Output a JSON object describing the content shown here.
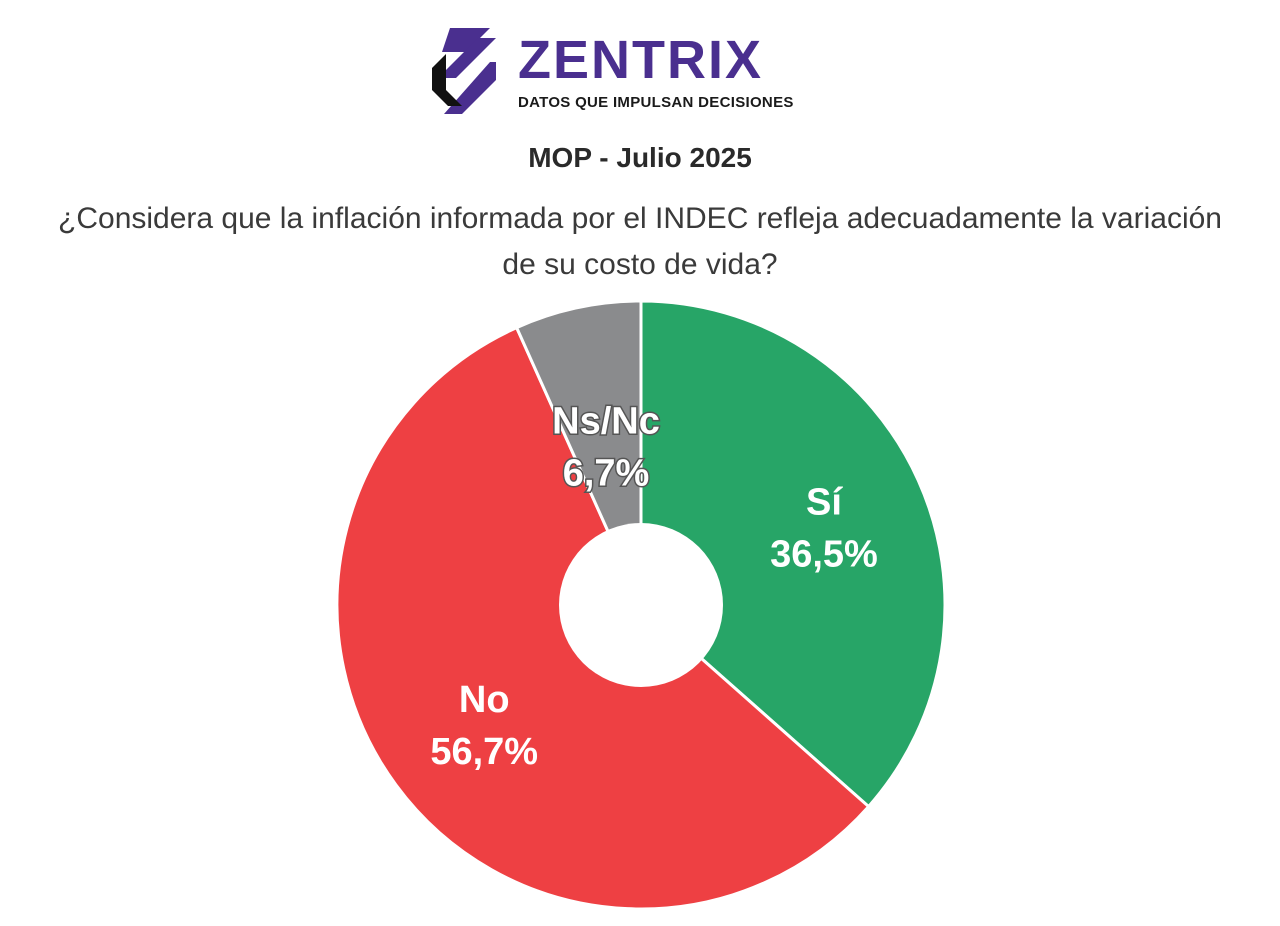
{
  "brand": {
    "name": "ZENTRIX",
    "tagline": "DATOS QUE IMPULSAN DECISIONES",
    "logo_icon": "zentrix-logo-icon",
    "color": "#4a2f8f"
  },
  "title": "MOP - Julio 2025",
  "subtitle": "¿Considera que la inflación informada por el INDEC refleja adecuadamente la variación de su costo de vida?",
  "chart_data": {
    "type": "pie",
    "donut": true,
    "start": "top",
    "direction": "clockwise",
    "slices": [
      {
        "name": "Sí",
        "value": 36.5,
        "label": "36,5%",
        "color": "#27a567"
      },
      {
        "name": "No",
        "value": 56.7,
        "label": "56,7%",
        "color": "#ee4043"
      },
      {
        "name": "Ns/Nc",
        "value": 6.7,
        "label": "6,7%",
        "color": "#8a8b8d"
      }
    ],
    "legend": "none"
  }
}
